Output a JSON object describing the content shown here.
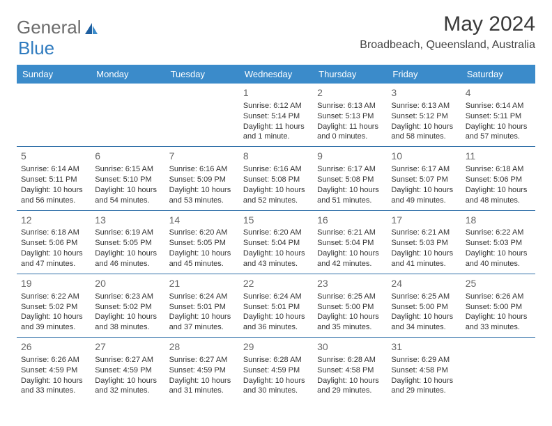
{
  "logo": {
    "part1": "General",
    "part2": "Blue"
  },
  "header": {
    "month_title": "May 2024",
    "location": "Broadbeach, Queensland, Australia"
  },
  "colors": {
    "header_bg": "#3b8bca",
    "header_text": "#ffffff",
    "row_border": "#2f6fa8",
    "text": "#333333",
    "daynum": "#666666",
    "logo_gray": "#6b6b6b",
    "logo_blue": "#2f7bbf"
  },
  "weekdays": [
    "Sunday",
    "Monday",
    "Tuesday",
    "Wednesday",
    "Thursday",
    "Friday",
    "Saturday"
  ],
  "weeks": [
    [
      null,
      null,
      null,
      {
        "day": "1",
        "sunrise": "Sunrise: 6:12 AM",
        "sunset": "Sunset: 5:14 PM",
        "daylight": "Daylight: 11 hours and 1 minute."
      },
      {
        "day": "2",
        "sunrise": "Sunrise: 6:13 AM",
        "sunset": "Sunset: 5:13 PM",
        "daylight": "Daylight: 11 hours and 0 minutes."
      },
      {
        "day": "3",
        "sunrise": "Sunrise: 6:13 AM",
        "sunset": "Sunset: 5:12 PM",
        "daylight": "Daylight: 10 hours and 58 minutes."
      },
      {
        "day": "4",
        "sunrise": "Sunrise: 6:14 AM",
        "sunset": "Sunset: 5:11 PM",
        "daylight": "Daylight: 10 hours and 57 minutes."
      }
    ],
    [
      {
        "day": "5",
        "sunrise": "Sunrise: 6:14 AM",
        "sunset": "Sunset: 5:11 PM",
        "daylight": "Daylight: 10 hours and 56 minutes."
      },
      {
        "day": "6",
        "sunrise": "Sunrise: 6:15 AM",
        "sunset": "Sunset: 5:10 PM",
        "daylight": "Daylight: 10 hours and 54 minutes."
      },
      {
        "day": "7",
        "sunrise": "Sunrise: 6:16 AM",
        "sunset": "Sunset: 5:09 PM",
        "daylight": "Daylight: 10 hours and 53 minutes."
      },
      {
        "day": "8",
        "sunrise": "Sunrise: 6:16 AM",
        "sunset": "Sunset: 5:08 PM",
        "daylight": "Daylight: 10 hours and 52 minutes."
      },
      {
        "day": "9",
        "sunrise": "Sunrise: 6:17 AM",
        "sunset": "Sunset: 5:08 PM",
        "daylight": "Daylight: 10 hours and 51 minutes."
      },
      {
        "day": "10",
        "sunrise": "Sunrise: 6:17 AM",
        "sunset": "Sunset: 5:07 PM",
        "daylight": "Daylight: 10 hours and 49 minutes."
      },
      {
        "day": "11",
        "sunrise": "Sunrise: 6:18 AM",
        "sunset": "Sunset: 5:06 PM",
        "daylight": "Daylight: 10 hours and 48 minutes."
      }
    ],
    [
      {
        "day": "12",
        "sunrise": "Sunrise: 6:18 AM",
        "sunset": "Sunset: 5:06 PM",
        "daylight": "Daylight: 10 hours and 47 minutes."
      },
      {
        "day": "13",
        "sunrise": "Sunrise: 6:19 AM",
        "sunset": "Sunset: 5:05 PM",
        "daylight": "Daylight: 10 hours and 46 minutes."
      },
      {
        "day": "14",
        "sunrise": "Sunrise: 6:20 AM",
        "sunset": "Sunset: 5:05 PM",
        "daylight": "Daylight: 10 hours and 45 minutes."
      },
      {
        "day": "15",
        "sunrise": "Sunrise: 6:20 AM",
        "sunset": "Sunset: 5:04 PM",
        "daylight": "Daylight: 10 hours and 43 minutes."
      },
      {
        "day": "16",
        "sunrise": "Sunrise: 6:21 AM",
        "sunset": "Sunset: 5:04 PM",
        "daylight": "Daylight: 10 hours and 42 minutes."
      },
      {
        "day": "17",
        "sunrise": "Sunrise: 6:21 AM",
        "sunset": "Sunset: 5:03 PM",
        "daylight": "Daylight: 10 hours and 41 minutes."
      },
      {
        "day": "18",
        "sunrise": "Sunrise: 6:22 AM",
        "sunset": "Sunset: 5:03 PM",
        "daylight": "Daylight: 10 hours and 40 minutes."
      }
    ],
    [
      {
        "day": "19",
        "sunrise": "Sunrise: 6:22 AM",
        "sunset": "Sunset: 5:02 PM",
        "daylight": "Daylight: 10 hours and 39 minutes."
      },
      {
        "day": "20",
        "sunrise": "Sunrise: 6:23 AM",
        "sunset": "Sunset: 5:02 PM",
        "daylight": "Daylight: 10 hours and 38 minutes."
      },
      {
        "day": "21",
        "sunrise": "Sunrise: 6:24 AM",
        "sunset": "Sunset: 5:01 PM",
        "daylight": "Daylight: 10 hours and 37 minutes."
      },
      {
        "day": "22",
        "sunrise": "Sunrise: 6:24 AM",
        "sunset": "Sunset: 5:01 PM",
        "daylight": "Daylight: 10 hours and 36 minutes."
      },
      {
        "day": "23",
        "sunrise": "Sunrise: 6:25 AM",
        "sunset": "Sunset: 5:00 PM",
        "daylight": "Daylight: 10 hours and 35 minutes."
      },
      {
        "day": "24",
        "sunrise": "Sunrise: 6:25 AM",
        "sunset": "Sunset: 5:00 PM",
        "daylight": "Daylight: 10 hours and 34 minutes."
      },
      {
        "day": "25",
        "sunrise": "Sunrise: 6:26 AM",
        "sunset": "Sunset: 5:00 PM",
        "daylight": "Daylight: 10 hours and 33 minutes."
      }
    ],
    [
      {
        "day": "26",
        "sunrise": "Sunrise: 6:26 AM",
        "sunset": "Sunset: 4:59 PM",
        "daylight": "Daylight: 10 hours and 33 minutes."
      },
      {
        "day": "27",
        "sunrise": "Sunrise: 6:27 AM",
        "sunset": "Sunset: 4:59 PM",
        "daylight": "Daylight: 10 hours and 32 minutes."
      },
      {
        "day": "28",
        "sunrise": "Sunrise: 6:27 AM",
        "sunset": "Sunset: 4:59 PM",
        "daylight": "Daylight: 10 hours and 31 minutes."
      },
      {
        "day": "29",
        "sunrise": "Sunrise: 6:28 AM",
        "sunset": "Sunset: 4:59 PM",
        "daylight": "Daylight: 10 hours and 30 minutes."
      },
      {
        "day": "30",
        "sunrise": "Sunrise: 6:28 AM",
        "sunset": "Sunset: 4:58 PM",
        "daylight": "Daylight: 10 hours and 29 minutes."
      },
      {
        "day": "31",
        "sunrise": "Sunrise: 6:29 AM",
        "sunset": "Sunset: 4:58 PM",
        "daylight": "Daylight: 10 hours and 29 minutes."
      },
      null
    ]
  ]
}
